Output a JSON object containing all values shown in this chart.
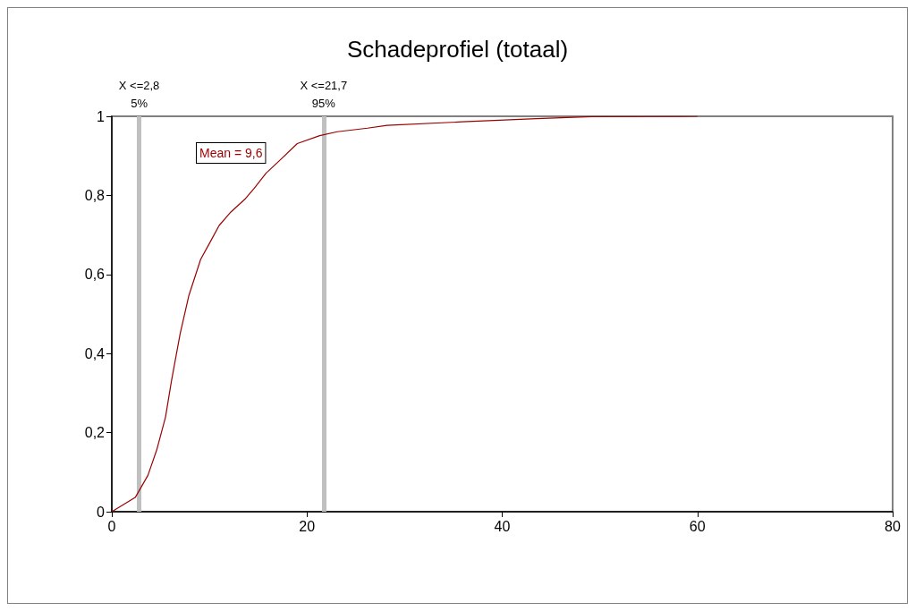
{
  "chart_data": {
    "type": "line",
    "title": "Schadeprofiel (totaal)",
    "x": [
      0,
      2.4,
      3.7,
      4.6,
      5.5,
      6.1,
      7.0,
      7.9,
      9.1,
      10.1,
      11.0,
      12.2,
      13.7,
      14.6,
      15.8,
      17.1,
      19.0,
      21.3,
      23.1,
      26.2,
      28.2,
      35.9,
      43.5,
      49.2,
      60
    ],
    "series": [
      {
        "color": "#990000",
        "values": [
          0,
          0.036,
          0.092,
          0.156,
          0.239,
          0.329,
          0.45,
          0.547,
          0.638,
          0.683,
          0.724,
          0.758,
          0.792,
          0.818,
          0.856,
          0.886,
          0.931,
          0.951,
          0.961,
          0.97,
          0.977,
          0.986,
          0.994,
          0.999,
          1
        ]
      }
    ],
    "xlim": [
      0,
      80
    ],
    "xticks": [
      0,
      20,
      40,
      60,
      80
    ],
    "ylim": [
      0,
      1
    ],
    "yticks": [
      0,
      {
        "value": 0.2,
        "label": "0,2"
      },
      {
        "value": 0.4,
        "label": "0,4"
      },
      {
        "value": 0.6,
        "label": "0,6"
      },
      {
        "value": 0.8,
        "label": "0,8"
      },
      1
    ],
    "ref_lines": [
      {
        "axis": "x",
        "value": 2.8,
        "label": "X <=2,8\n5%",
        "color": "#c0c0c0"
      },
      {
        "axis": "x",
        "value": 21.7,
        "label": "X <=21,7\n95%",
        "color": "#c0c0c0"
      }
    ],
    "annotations": [
      "Mean = 9,6"
    ],
    "grid": false,
    "marker": "none",
    "line_style": "solid"
  }
}
